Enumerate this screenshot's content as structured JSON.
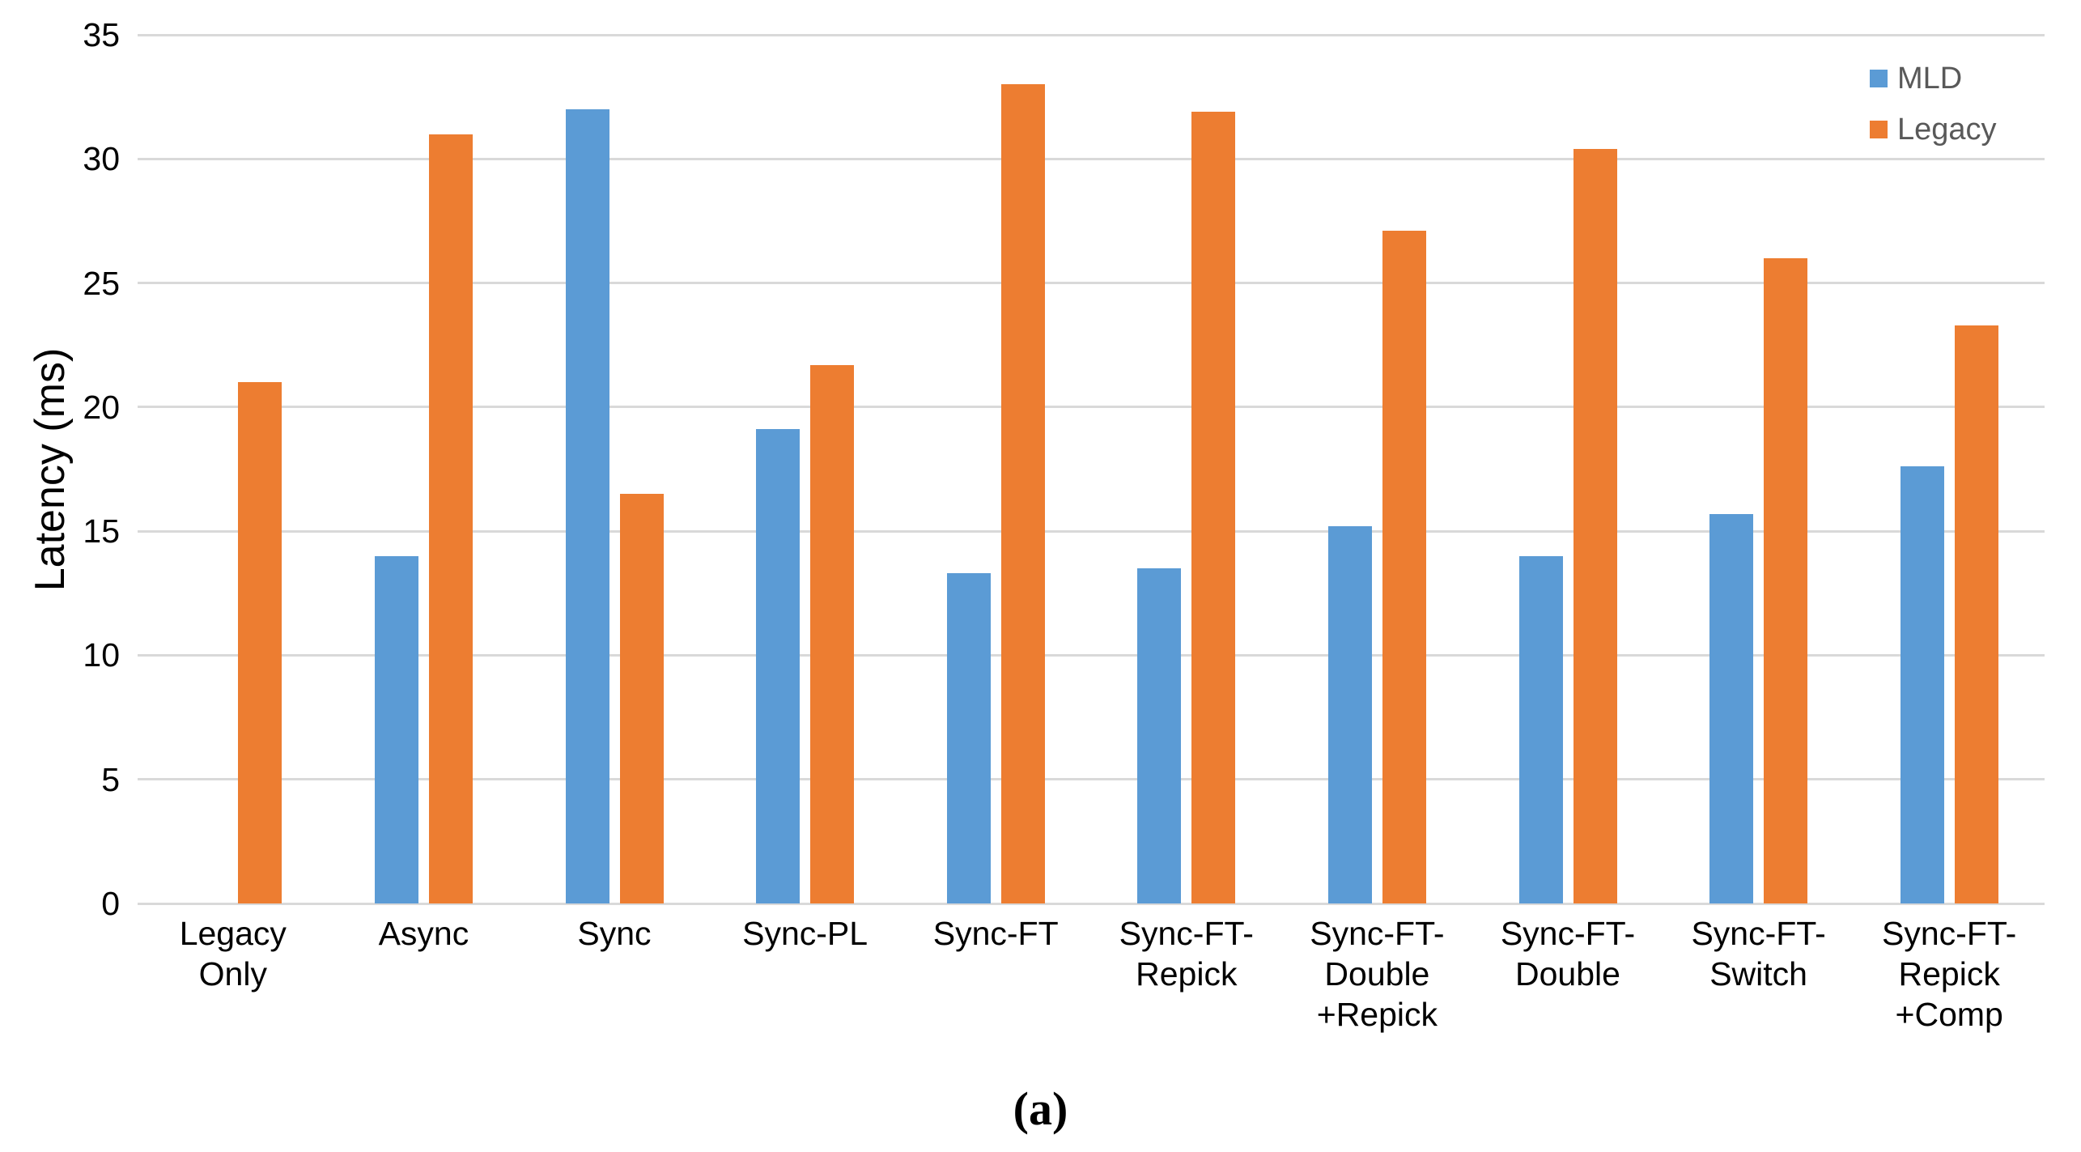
{
  "figure": {
    "caption": "(a)",
    "background": "#FFFFFF"
  },
  "chart_data": {
    "type": "bar",
    "title": "",
    "xlabel": "",
    "ylabel": "Latency (ms)",
    "ylim": [
      0,
      35
    ],
    "yticks": [
      0,
      5,
      10,
      15,
      20,
      25,
      30,
      35
    ],
    "grid": true,
    "gridline_color": "#D9D9D9",
    "axis_text_color": "#000000",
    "legend_position": "top-right",
    "legend_text_color": "#595959",
    "categories": [
      "Legacy Only",
      "Async",
      "Sync",
      "Sync-PL",
      "Sync-FT",
      "Sync-FT-Repick",
      "Sync-FT-Double+Repick",
      "Sync-FT-Double",
      "Sync-FT-Switch",
      "Sync-FT-Repick+Comp"
    ],
    "categories_lines": [
      [
        "Legacy",
        "Only"
      ],
      [
        "Async"
      ],
      [
        "Sync"
      ],
      [
        "Sync-PL"
      ],
      [
        "Sync-FT"
      ],
      [
        "Sync-FT-",
        "Repick"
      ],
      [
        "Sync-FT-",
        "Double",
        "+Repick"
      ],
      [
        "Sync-FT-",
        "Double"
      ],
      [
        "Sync-FT-",
        "Switch"
      ],
      [
        "Sync-FT-",
        "Repick",
        "+Comp"
      ]
    ],
    "series": [
      {
        "name": "MLD",
        "color": "#5B9BD5",
        "values": [
          null,
          14.0,
          32.0,
          19.1,
          13.3,
          13.5,
          15.2,
          14.0,
          15.7,
          17.6
        ]
      },
      {
        "name": "Legacy",
        "color": "#ED7D31",
        "values": [
          21.0,
          31.0,
          16.5,
          21.7,
          33.0,
          31.9,
          27.1,
          30.4,
          26.0,
          23.3
        ]
      }
    ]
  }
}
